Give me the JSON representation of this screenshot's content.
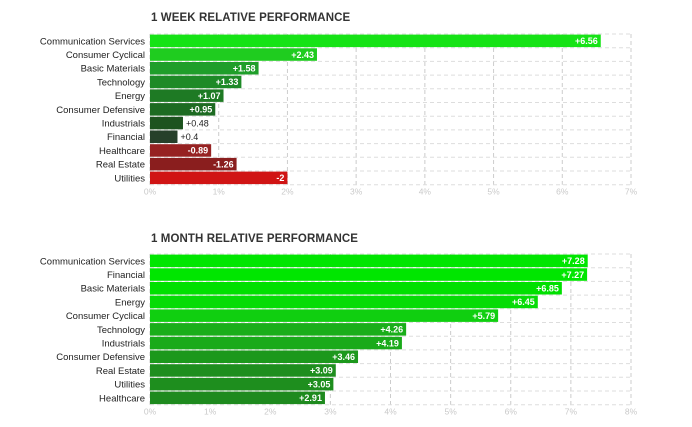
{
  "chart_data": [
    {
      "type": "bar",
      "orientation": "horizontal",
      "title": "1 WEEK RELATIVE PERFORMANCE",
      "categories": [
        "Communication Services",
        "Consumer Cyclical",
        "Basic Materials",
        "Technology",
        "Energy",
        "Consumer Defensive",
        "Industrials",
        "Financial",
        "Healthcare",
        "Real Estate",
        "Utilities"
      ],
      "values": [
        6.56,
        2.43,
        1.58,
        1.33,
        1.07,
        0.95,
        0.48,
        0.4,
        -0.89,
        -1.26,
        -2
      ],
      "value_labels": [
        "+6.56",
        "+2.43",
        "+1.58",
        "+1.33",
        "+1.07",
        "+0.95",
        "+0.48",
        "+0.4",
        "-0.89",
        "-1.26",
        "-2"
      ],
      "colors": [
        "#16e316",
        "#1fcc1f",
        "#1f9e2a",
        "#1e8a27",
        "#1e7a24",
        "#1d6b22",
        "#1d531f",
        "#26402a",
        "#962222",
        "#8a1e1e",
        "#d01414"
      ],
      "xlim": [
        0,
        7
      ],
      "xticks": [
        "0%",
        "1%",
        "2%",
        "3%",
        "4%",
        "5%",
        "6%",
        "7%"
      ],
      "grid": true
    },
    {
      "type": "bar",
      "orientation": "horizontal",
      "title": "1 MONTH RELATIVE PERFORMANCE",
      "categories": [
        "Communication Services",
        "Financial",
        "Basic Materials",
        "Energy",
        "Consumer Cyclical",
        "Technology",
        "Industrials",
        "Consumer Defensive",
        "Real Estate",
        "Utilities",
        "Healthcare"
      ],
      "values": [
        7.28,
        7.27,
        6.85,
        6.45,
        5.79,
        4.26,
        4.19,
        3.46,
        3.09,
        3.05,
        2.91
      ],
      "value_labels": [
        "+7.28",
        "+7.27",
        "+6.85",
        "+6.45",
        "+5.79",
        "+4.26",
        "+4.19",
        "+3.46",
        "+3.09",
        "+3.05",
        "+2.91"
      ],
      "colors": [
        "#00e600",
        "#00e600",
        "#00e000",
        "#06dc06",
        "#10cf10",
        "#1aae1a",
        "#1aaa1a",
        "#1c981c",
        "#1e8e1e",
        "#1e8e1e",
        "#1e8a1e"
      ],
      "xlim": [
        0,
        8
      ],
      "xticks": [
        "0%",
        "1%",
        "2%",
        "3%",
        "4%",
        "5%",
        "6%",
        "7%",
        "8%"
      ],
      "grid": true
    }
  ]
}
